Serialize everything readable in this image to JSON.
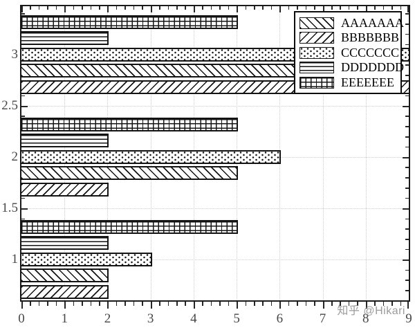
{
  "watermark": "知乎 @Hikari",
  "colors": {
    "background": "#ffffff",
    "bar_fill": "#ffffff",
    "line_and_hatch": "#141414",
    "grid": "#cdcdcd",
    "tick_label": "#474747",
    "watermark": "#828282"
  },
  "legend": {
    "position": "top-right",
    "entries": [
      {
        "label": "AAAAAAA",
        "hatch": "backslash-diagonal"
      },
      {
        "label": "BBBBBBB",
        "hatch": "slash-diagonal"
      },
      {
        "label": "CCCCCCC",
        "hatch": "dots"
      },
      {
        "label": "DDDDDDD",
        "hatch": "horizontal-lines"
      },
      {
        "label": "EEEEEEE",
        "hatch": "grid-crosshatch"
      }
    ]
  },
  "chart_data": {
    "type": "bar",
    "orientation": "horizontal",
    "title": "",
    "xlabel": "",
    "ylabel": "",
    "xlim": [
      0,
      9
    ],
    "ylim": [
      0.6,
      3.47
    ],
    "grid": true,
    "legend_position": "top-right",
    "x_tick_labels": [
      "0",
      "1",
      "2",
      "3",
      "4",
      "5",
      "6",
      "7",
      "8",
      "9"
    ],
    "x_major_ticks": [
      0,
      1,
      2,
      3,
      4,
      5,
      6,
      7,
      8,
      9
    ],
    "x_minor_step": 0.2,
    "y_tick_labels": [
      "1",
      "1.5",
      "2",
      "2.5",
      "3"
    ],
    "y_major_ticks": [
      1,
      1.5,
      2,
      2.5,
      3
    ],
    "y_minor_step": 0.1,
    "categories": [
      1,
      2,
      3
    ],
    "series": [
      {
        "name": "AAAAAAA",
        "hatch": "backslash-diagonal",
        "values": [
          2,
          5,
          8
        ]
      },
      {
        "name": "BBBBBBB",
        "hatch": "slash-diagonal",
        "values": [
          2,
          2,
          9
        ]
      },
      {
        "name": "CCCCCCC",
        "hatch": "dots",
        "values": [
          3,
          6,
          9
        ]
      },
      {
        "name": "DDDDDDD",
        "hatch": "horizontal-lines",
        "values": [
          2,
          2,
          2
        ]
      },
      {
        "name": "EEEEEEE",
        "hatch": "grid-crosshatch",
        "values": [
          5,
          5,
          5
        ]
      }
    ],
    "group_row_order_top_to_bottom": [
      "EEEEEEE",
      "DDDDDDD",
      "CCCCCCC",
      "AAAAAAA",
      "BBBBBBB"
    ],
    "notes": "AAAAAAA bar of category 3 (value 8) is partially hidden behind the legend box"
  }
}
